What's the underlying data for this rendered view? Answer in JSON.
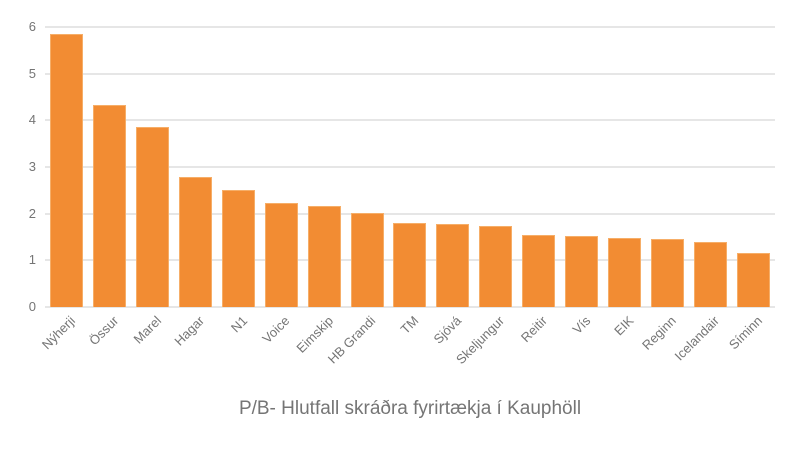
{
  "chart_data": {
    "type": "bar",
    "title": "P/B- Hlutfall skráðra fyrirtækja í Kauphöll",
    "categories": [
      "Nýherji",
      "Össur",
      "Marel",
      "Hagar",
      "N1",
      "Voice",
      "Eimskip",
      "HB Grandi",
      "TM",
      "Sjóvá",
      "Skeljungur",
      "Reitir",
      "Vís",
      "EIK",
      "Reginn",
      "Icelandair",
      "Síminn"
    ],
    "values": [
      5.86,
      4.33,
      3.85,
      2.79,
      2.5,
      2.23,
      2.17,
      2.02,
      1.81,
      1.77,
      1.74,
      1.54,
      1.53,
      1.48,
      1.45,
      1.39,
      1.15
    ],
    "xlabel": "",
    "ylabel": "",
    "ylim": [
      0,
      6
    ],
    "yticks": [
      0,
      1,
      2,
      3,
      4,
      5,
      6
    ],
    "grid": true,
    "legend": "none",
    "colors": {
      "bar": "#F28C33",
      "bar_edge": "#F6AE68",
      "gridline": "#E6E6E6",
      "axis_text": "#757575",
      "title_text": "#757575",
      "background": "#FFFFFF"
    }
  }
}
